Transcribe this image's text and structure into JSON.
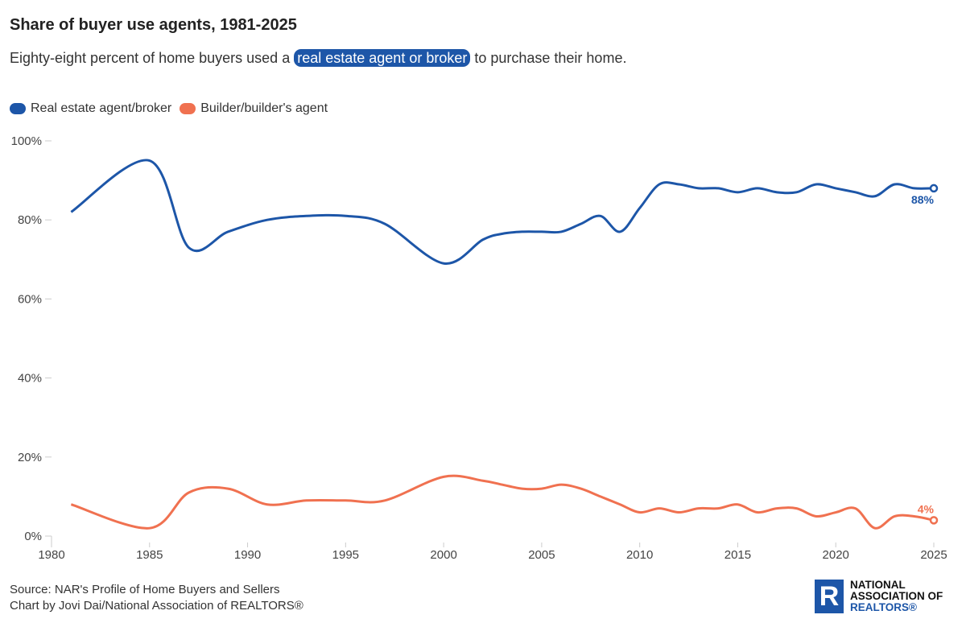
{
  "header": {
    "title": "Share of buyer use agents, 1981-2025",
    "subtitle_pre": "Eighty-eight percent of home buyers used a ",
    "subtitle_highlight": "real estate agent or broker",
    "subtitle_post": " to purchase their home."
  },
  "footer": {
    "source": "Source: NAR's Profile of Home Buyers and Sellers",
    "credit": "Chart by Jovi Dai/National Association of REALTORS®"
  },
  "logo": {
    "line1": "NATIONAL",
    "line2": "ASSOCIATION OF",
    "line3": "REALTORS®",
    "mark": "R"
  },
  "chart_data": {
    "type": "line",
    "title": "Share of buyer use agents, 1981-2025",
    "xlabel": "",
    "ylabel": "",
    "xlim": [
      1980,
      2025
    ],
    "ylim": [
      0,
      100
    ],
    "x_ticks": [
      1980,
      1985,
      1990,
      1995,
      2000,
      2005,
      2010,
      2015,
      2020,
      2025
    ],
    "y_ticks": [
      0,
      20,
      40,
      60,
      80,
      100
    ],
    "y_tick_labels": [
      "0%",
      "20%",
      "40%",
      "60%",
      "80%",
      "100%"
    ],
    "legend_position": "top-left",
    "grid": false,
    "series": [
      {
        "name": "Real estate agent/broker",
        "color": "#1d56a8",
        "end_label": "88%",
        "x": [
          1981,
          1985,
          1987,
          1989,
          1991,
          1993,
          1995,
          1997,
          2000,
          2002,
          2003,
          2004,
          2005,
          2006,
          2007,
          2008,
          2009,
          2010,
          2011,
          2012,
          2013,
          2014,
          2015,
          2016,
          2017,
          2018,
          2019,
          2020,
          2021,
          2022,
          2023,
          2024,
          2025
        ],
        "values": [
          82,
          95,
          73,
          77,
          80,
          81,
          81,
          79,
          69,
          75,
          76.5,
          77,
          77,
          77,
          79,
          81,
          77,
          83,
          89,
          89,
          88,
          88,
          87,
          88,
          87,
          87,
          89,
          88,
          87,
          86,
          89,
          88,
          88
        ]
      },
      {
        "name": "Builder/builder's agent",
        "color": "#f07150",
        "end_label": "4%",
        "x": [
          1981,
          1985,
          1987,
          1989,
          1991,
          1993,
          1995,
          1997,
          2000,
          2002,
          2003,
          2004,
          2005,
          2006,
          2007,
          2008,
          2009,
          2010,
          2011,
          2012,
          2013,
          2014,
          2015,
          2016,
          2017,
          2018,
          2019,
          2020,
          2021,
          2022,
          2023,
          2024,
          2025
        ],
        "values": [
          8,
          2,
          11,
          12,
          8,
          9,
          9,
          9,
          15,
          14,
          13,
          12,
          12,
          13,
          12,
          10,
          8,
          6,
          7,
          6,
          7,
          7,
          8,
          6,
          7,
          7,
          5,
          6,
          7,
          2,
          5,
          5,
          4
        ]
      }
    ]
  }
}
